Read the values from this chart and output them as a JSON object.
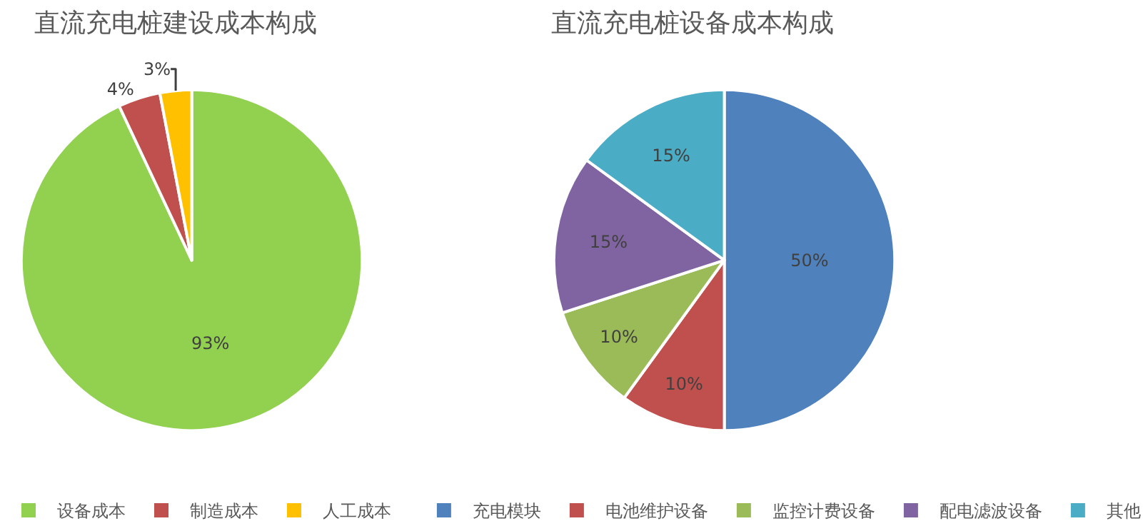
{
  "chart_data": [
    {
      "type": "pie",
      "title": "直流充电桩建设成本构成",
      "categories": [
        "设备成本",
        "制造成本",
        "人工成本"
      ],
      "values": [
        93,
        4,
        3
      ],
      "colors": [
        "#92d050",
        "#c0504d",
        "#ffc000"
      ],
      "value_labels": [
        "93%",
        "4%",
        "3%"
      ],
      "legend": "bottom"
    },
    {
      "type": "pie",
      "title": "直流充电桩设备成本构成",
      "categories": [
        "充电模块",
        "电池维护设备",
        "监控计费设备",
        "配电滤波设备",
        "其他"
      ],
      "values": [
        50,
        10,
        10,
        15,
        15
      ],
      "colors": [
        "#4f81bd",
        "#c0504d",
        "#9bbb59",
        "#8064a2",
        "#4bacc6"
      ],
      "value_labels": [
        "50%",
        "10%",
        "10%",
        "15%",
        "15%"
      ],
      "legend": "bottom"
    }
  ]
}
